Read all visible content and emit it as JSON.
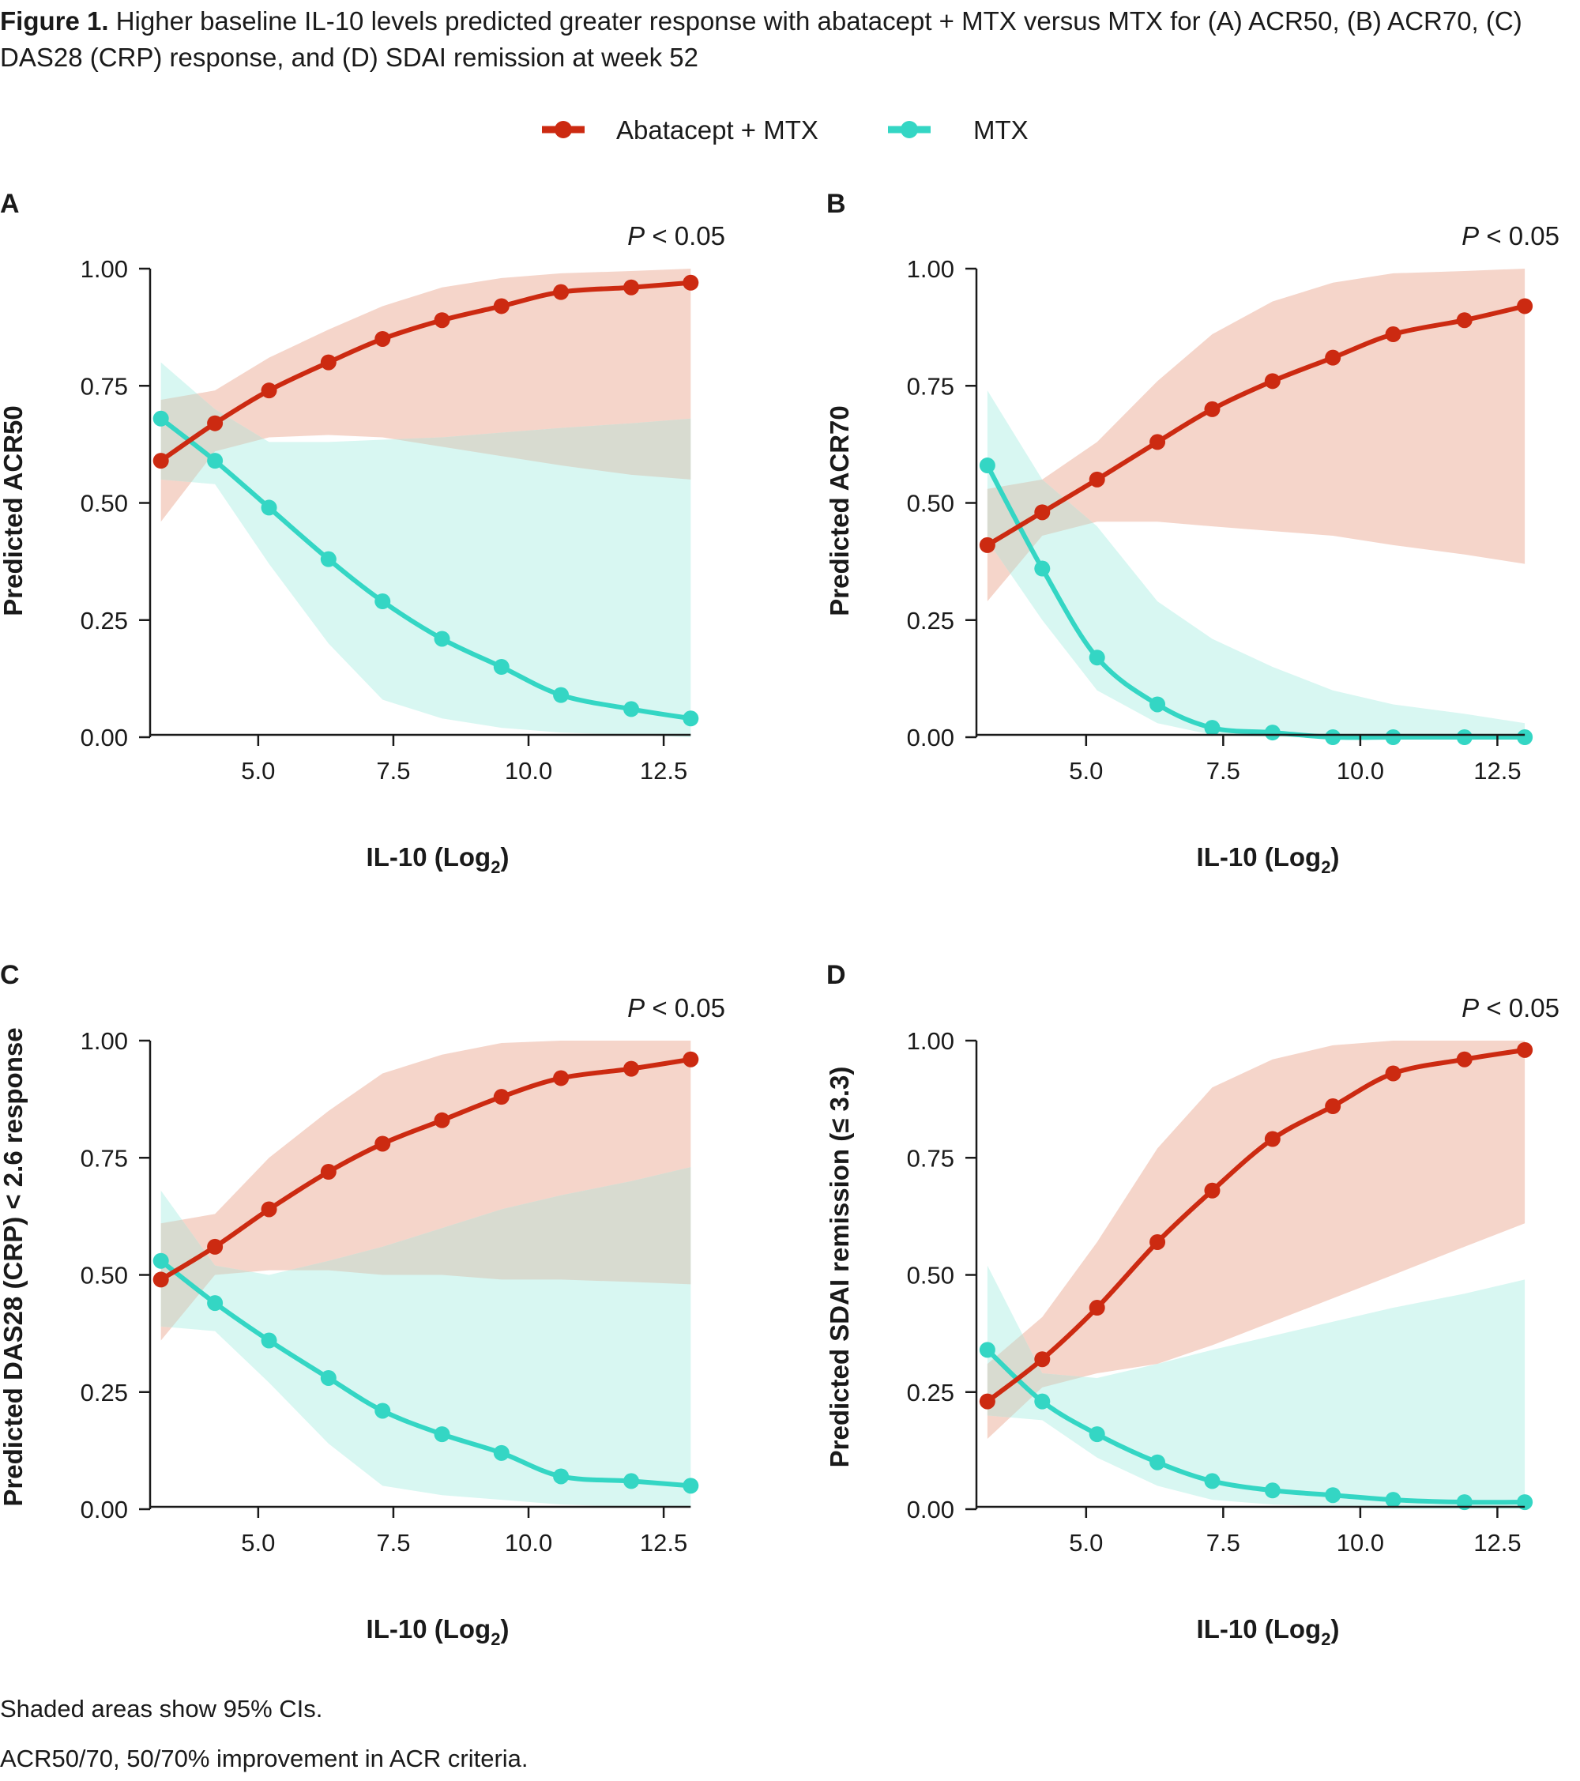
{
  "figure": {
    "label": "Figure 1.",
    "caption": "Higher baseline IL-10 levels predicted greater response with abatacept + MTX versus MTX for (A) ACR50, (B) ACR70, (C) DAS28 (CRP) response, and (D) SDAI remission at week 52"
  },
  "legend": {
    "items": [
      {
        "name": "Abatacept + MTX",
        "color": "#cc2a11"
      },
      {
        "name": "MTX",
        "color": "#34d6c4"
      }
    ]
  },
  "colors": {
    "abatacept_line": "#cc2a11",
    "abatacept_band": "#f5d5ca",
    "mtx_line": "#34d6c4",
    "mtx_band": "#d8f7f2",
    "overlap_band": "#d8dbd0",
    "axis": "#1a1a1a"
  },
  "footnotes": {
    "line1": "Shaded areas show 95% CIs.",
    "line2": "ACR50/70, 50/70% improvement in ACR criteria."
  },
  "chart_data": [
    {
      "panel": "A",
      "type": "line",
      "annotation": "P < 0.05",
      "xlabel_main": "IL-10 (Log",
      "xlabel_sub": "2",
      "xlabel_end": ")",
      "ylabel": "Predicted ACR50",
      "xlim": [
        3.0,
        13.2
      ],
      "ylim": [
        0,
        1
      ],
      "xticks": [
        5.0,
        7.5,
        10.0,
        12.5
      ],
      "xtick_labels": [
        "5.0",
        "7.5",
        "10.0",
        "12.5"
      ],
      "yticks": [
        0,
        0.25,
        0.5,
        0.75,
        1.0
      ],
      "ytick_labels": [
        "0.00",
        "0.25",
        "0.50",
        "0.75",
        "1.00"
      ],
      "x": [
        3.2,
        4.2,
        5.2,
        6.3,
        7.3,
        8.4,
        9.5,
        10.6,
        11.9,
        13.0
      ],
      "series": [
        {
          "name": "Abatacept + MTX",
          "values": [
            0.59,
            0.67,
            0.74,
            0.8,
            0.85,
            0.89,
            0.92,
            0.95,
            0.96,
            0.97
          ],
          "lower": [
            0.46,
            0.61,
            0.64,
            0.645,
            0.64,
            0.62,
            0.6,
            0.58,
            0.56,
            0.55
          ],
          "upper": [
            0.72,
            0.74,
            0.81,
            0.87,
            0.92,
            0.96,
            0.98,
            0.99,
            0.995,
            1.0
          ]
        },
        {
          "name": "MTX",
          "values": [
            0.68,
            0.59,
            0.49,
            0.38,
            0.29,
            0.21,
            0.15,
            0.09,
            0.06,
            0.04
          ],
          "lower": [
            0.55,
            0.54,
            0.37,
            0.2,
            0.08,
            0.04,
            0.02,
            0.01,
            0.005,
            0.0
          ],
          "upper": [
            0.8,
            0.7,
            0.63,
            0.63,
            0.635,
            0.64,
            0.65,
            0.66,
            0.67,
            0.68
          ]
        }
      ]
    },
    {
      "panel": "B",
      "type": "line",
      "annotation": "P < 0.05",
      "xlabel_main": "IL-10 (Log",
      "xlabel_sub": "2",
      "xlabel_end": ")",
      "ylabel": "Predicted ACR70",
      "xlim": [
        3.0,
        13.2
      ],
      "ylim": [
        0,
        1
      ],
      "xticks": [
        5.0,
        7.5,
        10.0,
        12.5
      ],
      "xtick_labels": [
        "5.0",
        "7.5",
        "10.0",
        "12.5"
      ],
      "yticks": [
        0,
        0.25,
        0.5,
        0.75,
        1.0
      ],
      "ytick_labels": [
        "0.00",
        "0.25",
        "0.50",
        "0.75",
        "1.00"
      ],
      "x": [
        3.2,
        4.2,
        5.2,
        6.3,
        7.3,
        8.4,
        9.5,
        10.6,
        11.9,
        13.0
      ],
      "series": [
        {
          "name": "Abatacept + MTX",
          "values": [
            0.41,
            0.48,
            0.55,
            0.63,
            0.7,
            0.76,
            0.81,
            0.86,
            0.89,
            0.92
          ],
          "lower": [
            0.29,
            0.43,
            0.46,
            0.46,
            0.45,
            0.44,
            0.43,
            0.41,
            0.39,
            0.37
          ],
          "upper": [
            0.53,
            0.55,
            0.63,
            0.76,
            0.86,
            0.93,
            0.97,
            0.99,
            0.995,
            1.0
          ]
        },
        {
          "name": "MTX",
          "values": [
            0.58,
            0.36,
            0.17,
            0.07,
            0.02,
            0.01,
            0.0,
            0.0,
            0.0,
            0.0
          ],
          "lower": [
            0.42,
            0.25,
            0.1,
            0.03,
            0.005,
            0.0,
            0.0,
            0.0,
            0.0,
            0.0
          ],
          "upper": [
            0.74,
            0.55,
            0.45,
            0.29,
            0.21,
            0.15,
            0.1,
            0.07,
            0.05,
            0.03
          ]
        }
      ]
    },
    {
      "panel": "C",
      "type": "line",
      "annotation": "P < 0.05",
      "xlabel_main": "IL-10 (Log",
      "xlabel_sub": "2",
      "xlabel_end": ")",
      "ylabel": "Predicted DAS28 (CRP) < 2.6 response",
      "xlim": [
        3.0,
        13.2
      ],
      "ylim": [
        0,
        1
      ],
      "xticks": [
        5.0,
        7.5,
        10.0,
        12.5
      ],
      "xtick_labels": [
        "5.0",
        "7.5",
        "10.0",
        "12.5"
      ],
      "yticks": [
        0,
        0.25,
        0.5,
        0.75,
        1.0
      ],
      "ytick_labels": [
        "0.00",
        "0.25",
        "0.50",
        "0.75",
        "1.00"
      ],
      "x": [
        3.2,
        4.2,
        5.2,
        6.3,
        7.3,
        8.4,
        9.5,
        10.6,
        11.9,
        13.0
      ],
      "series": [
        {
          "name": "Abatacept + MTX",
          "values": [
            0.49,
            0.56,
            0.64,
            0.72,
            0.78,
            0.83,
            0.88,
            0.92,
            0.94,
            0.96
          ],
          "lower": [
            0.36,
            0.5,
            0.51,
            0.51,
            0.5,
            0.5,
            0.49,
            0.49,
            0.485,
            0.48
          ],
          "upper": [
            0.61,
            0.63,
            0.75,
            0.85,
            0.93,
            0.97,
            0.995,
            1.0,
            1.0,
            1.0
          ]
        },
        {
          "name": "MTX",
          "values": [
            0.53,
            0.44,
            0.36,
            0.28,
            0.21,
            0.16,
            0.12,
            0.07,
            0.06,
            0.05
          ],
          "lower": [
            0.39,
            0.38,
            0.27,
            0.14,
            0.05,
            0.03,
            0.02,
            0.01,
            0.005,
            0.005
          ],
          "upper": [
            0.68,
            0.52,
            0.5,
            0.53,
            0.56,
            0.6,
            0.64,
            0.67,
            0.7,
            0.73
          ]
        }
      ]
    },
    {
      "panel": "D",
      "type": "line",
      "annotation": "P < 0.05",
      "xlabel_main": "IL-10 (Log",
      "xlabel_sub": "2",
      "xlabel_end": ")",
      "ylabel": "Predicted SDAI remission (≤ 3.3)",
      "xlim": [
        3.0,
        13.2
      ],
      "ylim": [
        0,
        1
      ],
      "xticks": [
        5.0,
        7.5,
        10.0,
        12.5
      ],
      "xtick_labels": [
        "5.0",
        "7.5",
        "10.0",
        "12.5"
      ],
      "yticks": [
        0,
        0.25,
        0.5,
        0.75,
        1.0
      ],
      "ytick_labels": [
        "0.00",
        "0.25",
        "0.50",
        "0.75",
        "1.00"
      ],
      "x": [
        3.2,
        4.2,
        5.2,
        6.3,
        7.3,
        8.4,
        9.5,
        10.6,
        11.9,
        13.0
      ],
      "series": [
        {
          "name": "Abatacept + MTX",
          "values": [
            0.23,
            0.32,
            0.43,
            0.57,
            0.68,
            0.79,
            0.86,
            0.93,
            0.96,
            0.98
          ],
          "lower": [
            0.15,
            0.26,
            0.29,
            0.31,
            0.35,
            0.4,
            0.45,
            0.5,
            0.56,
            0.61
          ],
          "upper": [
            0.31,
            0.41,
            0.57,
            0.77,
            0.9,
            0.96,
            0.99,
            1.0,
            1.0,
            1.0
          ]
        },
        {
          "name": "MTX",
          "values": [
            0.34,
            0.23,
            0.16,
            0.1,
            0.06,
            0.04,
            0.03,
            0.02,
            0.015,
            0.015
          ],
          "lower": [
            0.2,
            0.19,
            0.11,
            0.05,
            0.02,
            0.01,
            0.005,
            0.0,
            0.0,
            0.0
          ],
          "upper": [
            0.52,
            0.29,
            0.28,
            0.31,
            0.34,
            0.37,
            0.4,
            0.43,
            0.46,
            0.49
          ]
        }
      ]
    }
  ]
}
